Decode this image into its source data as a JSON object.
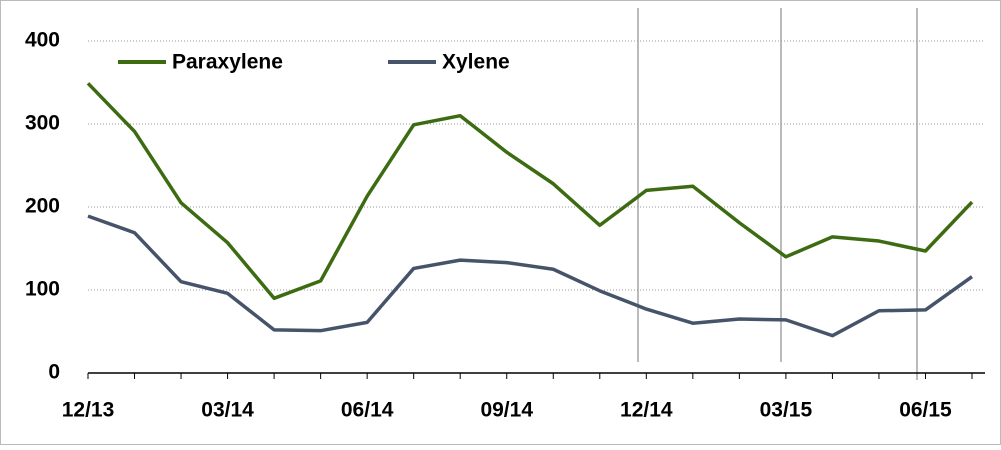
{
  "chart_data": {
    "type": "line",
    "categories": [
      "12/13",
      null,
      null,
      "03/14",
      null,
      null,
      "06/14",
      null,
      null,
      "09/14",
      null,
      null,
      "12/14",
      null,
      null,
      "03/15",
      null,
      null,
      "06/15",
      null
    ],
    "series": [
      {
        "name": "Paraxylene",
        "color": "#3d6b12",
        "values": [
          349,
          291,
          205,
          157,
          90,
          111,
          213,
          299,
          310,
          266,
          228,
          178,
          220,
          225,
          181,
          140,
          164,
          159,
          147,
          206
        ]
      },
      {
        "name": "Xylene",
        "color": "#46546a",
        "values": [
          189,
          169,
          110,
          96,
          52,
          51,
          61,
          126,
          136,
          133,
          125,
          99,
          77,
          60,
          65,
          64,
          45,
          75,
          76,
          116
        ]
      }
    ],
    "ylim": [
      0,
      400
    ],
    "yticks": [
      0,
      100,
      200,
      300,
      400
    ],
    "grid": true,
    "legend": "top-left"
  }
}
